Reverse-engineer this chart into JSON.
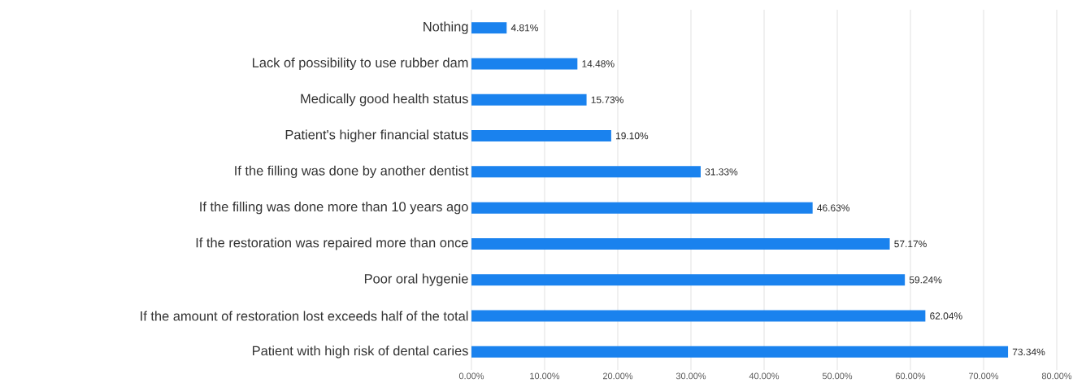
{
  "chart_data": {
    "type": "bar",
    "orientation": "horizontal",
    "categories": [
      "Nothing",
      "Lack of possibility to use rubber dam",
      "Medically good health status",
      "Patient's higher financial status",
      "If the filling was done by another dentist",
      "If the filling was done more than 10 years ago",
      "If the restoration was repaired more than once",
      "Poor oral hygenie",
      "If the amount of restoration lost exceeds half of the total",
      "Patient with high risk of dental caries"
    ],
    "values": [
      4.81,
      14.48,
      15.73,
      19.1,
      31.33,
      46.63,
      57.17,
      59.24,
      62.04,
      73.34
    ],
    "value_labels": [
      "4.81%",
      "14.48%",
      "15.73%",
      "19.10%",
      "31.33%",
      "46.63%",
      "57.17%",
      "59.24%",
      "62.04%",
      "73.34%"
    ],
    "color": "#1a82ee",
    "xlim": [
      0,
      80
    ],
    "xticks": [
      {
        "value": 0,
        "label": "0.00%"
      },
      {
        "value": 10,
        "label": "10.00%"
      },
      {
        "value": 20,
        "label": "20.00%"
      },
      {
        "value": 30,
        "label": "30.00%"
      },
      {
        "value": 40,
        "label": "40.00%"
      },
      {
        "value": 50,
        "label": "50.00%"
      },
      {
        "value": 60,
        "label": "60.00%"
      },
      {
        "value": 70,
        "label": "70.00%"
      },
      {
        "value": 80,
        "label": "80.00%"
      }
    ],
    "grid": "x"
  }
}
